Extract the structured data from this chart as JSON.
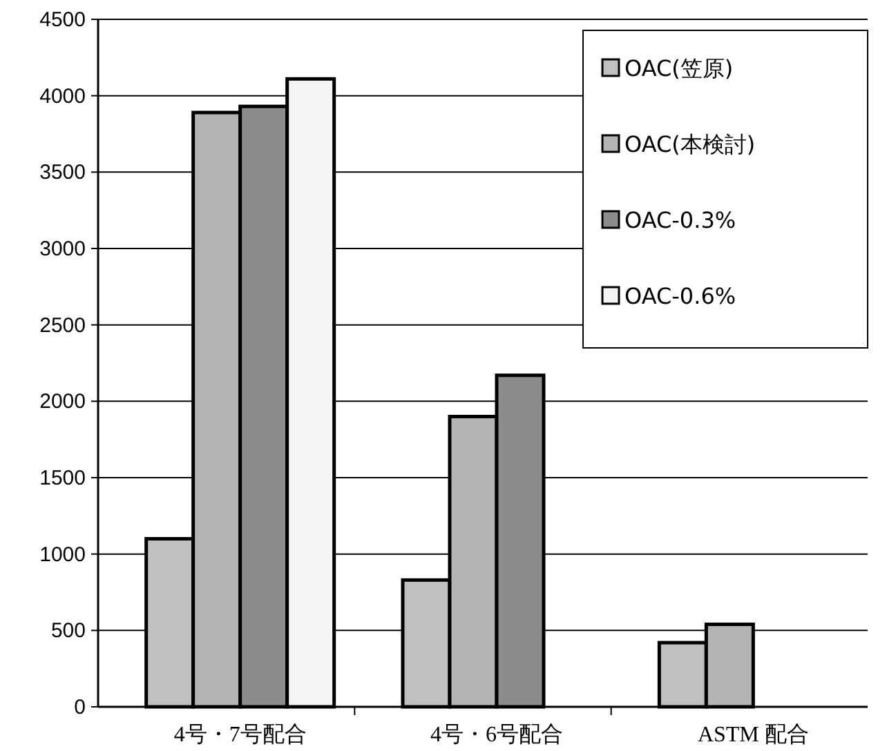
{
  "chart_data": {
    "type": "bar",
    "categories": [
      "4号・7号配合",
      "4号・6号配合",
      "ASTM 配合"
    ],
    "series": [
      {
        "name": "OAC(笠原)",
        "color": "#c0c0c0",
        "values": [
          1100,
          830,
          420
        ]
      },
      {
        "name": "OAC(本検討)",
        "color": "#b4b4b4",
        "values": [
          3890,
          1900,
          540
        ]
      },
      {
        "name": "OAC-0.3%",
        "color": "#8c8c8c",
        "values": [
          3930,
          2170,
          null
        ]
      },
      {
        "name": "OAC-0.6%",
        "color": "#f4f4f4",
        "values": [
          4110,
          null,
          null
        ]
      }
    ],
    "ylim": [
      0,
      4500
    ],
    "yticks": [
      0,
      500,
      1000,
      1500,
      2000,
      2500,
      3000,
      3500,
      4000,
      4500
    ],
    "grid": "y",
    "legend": "top right"
  }
}
